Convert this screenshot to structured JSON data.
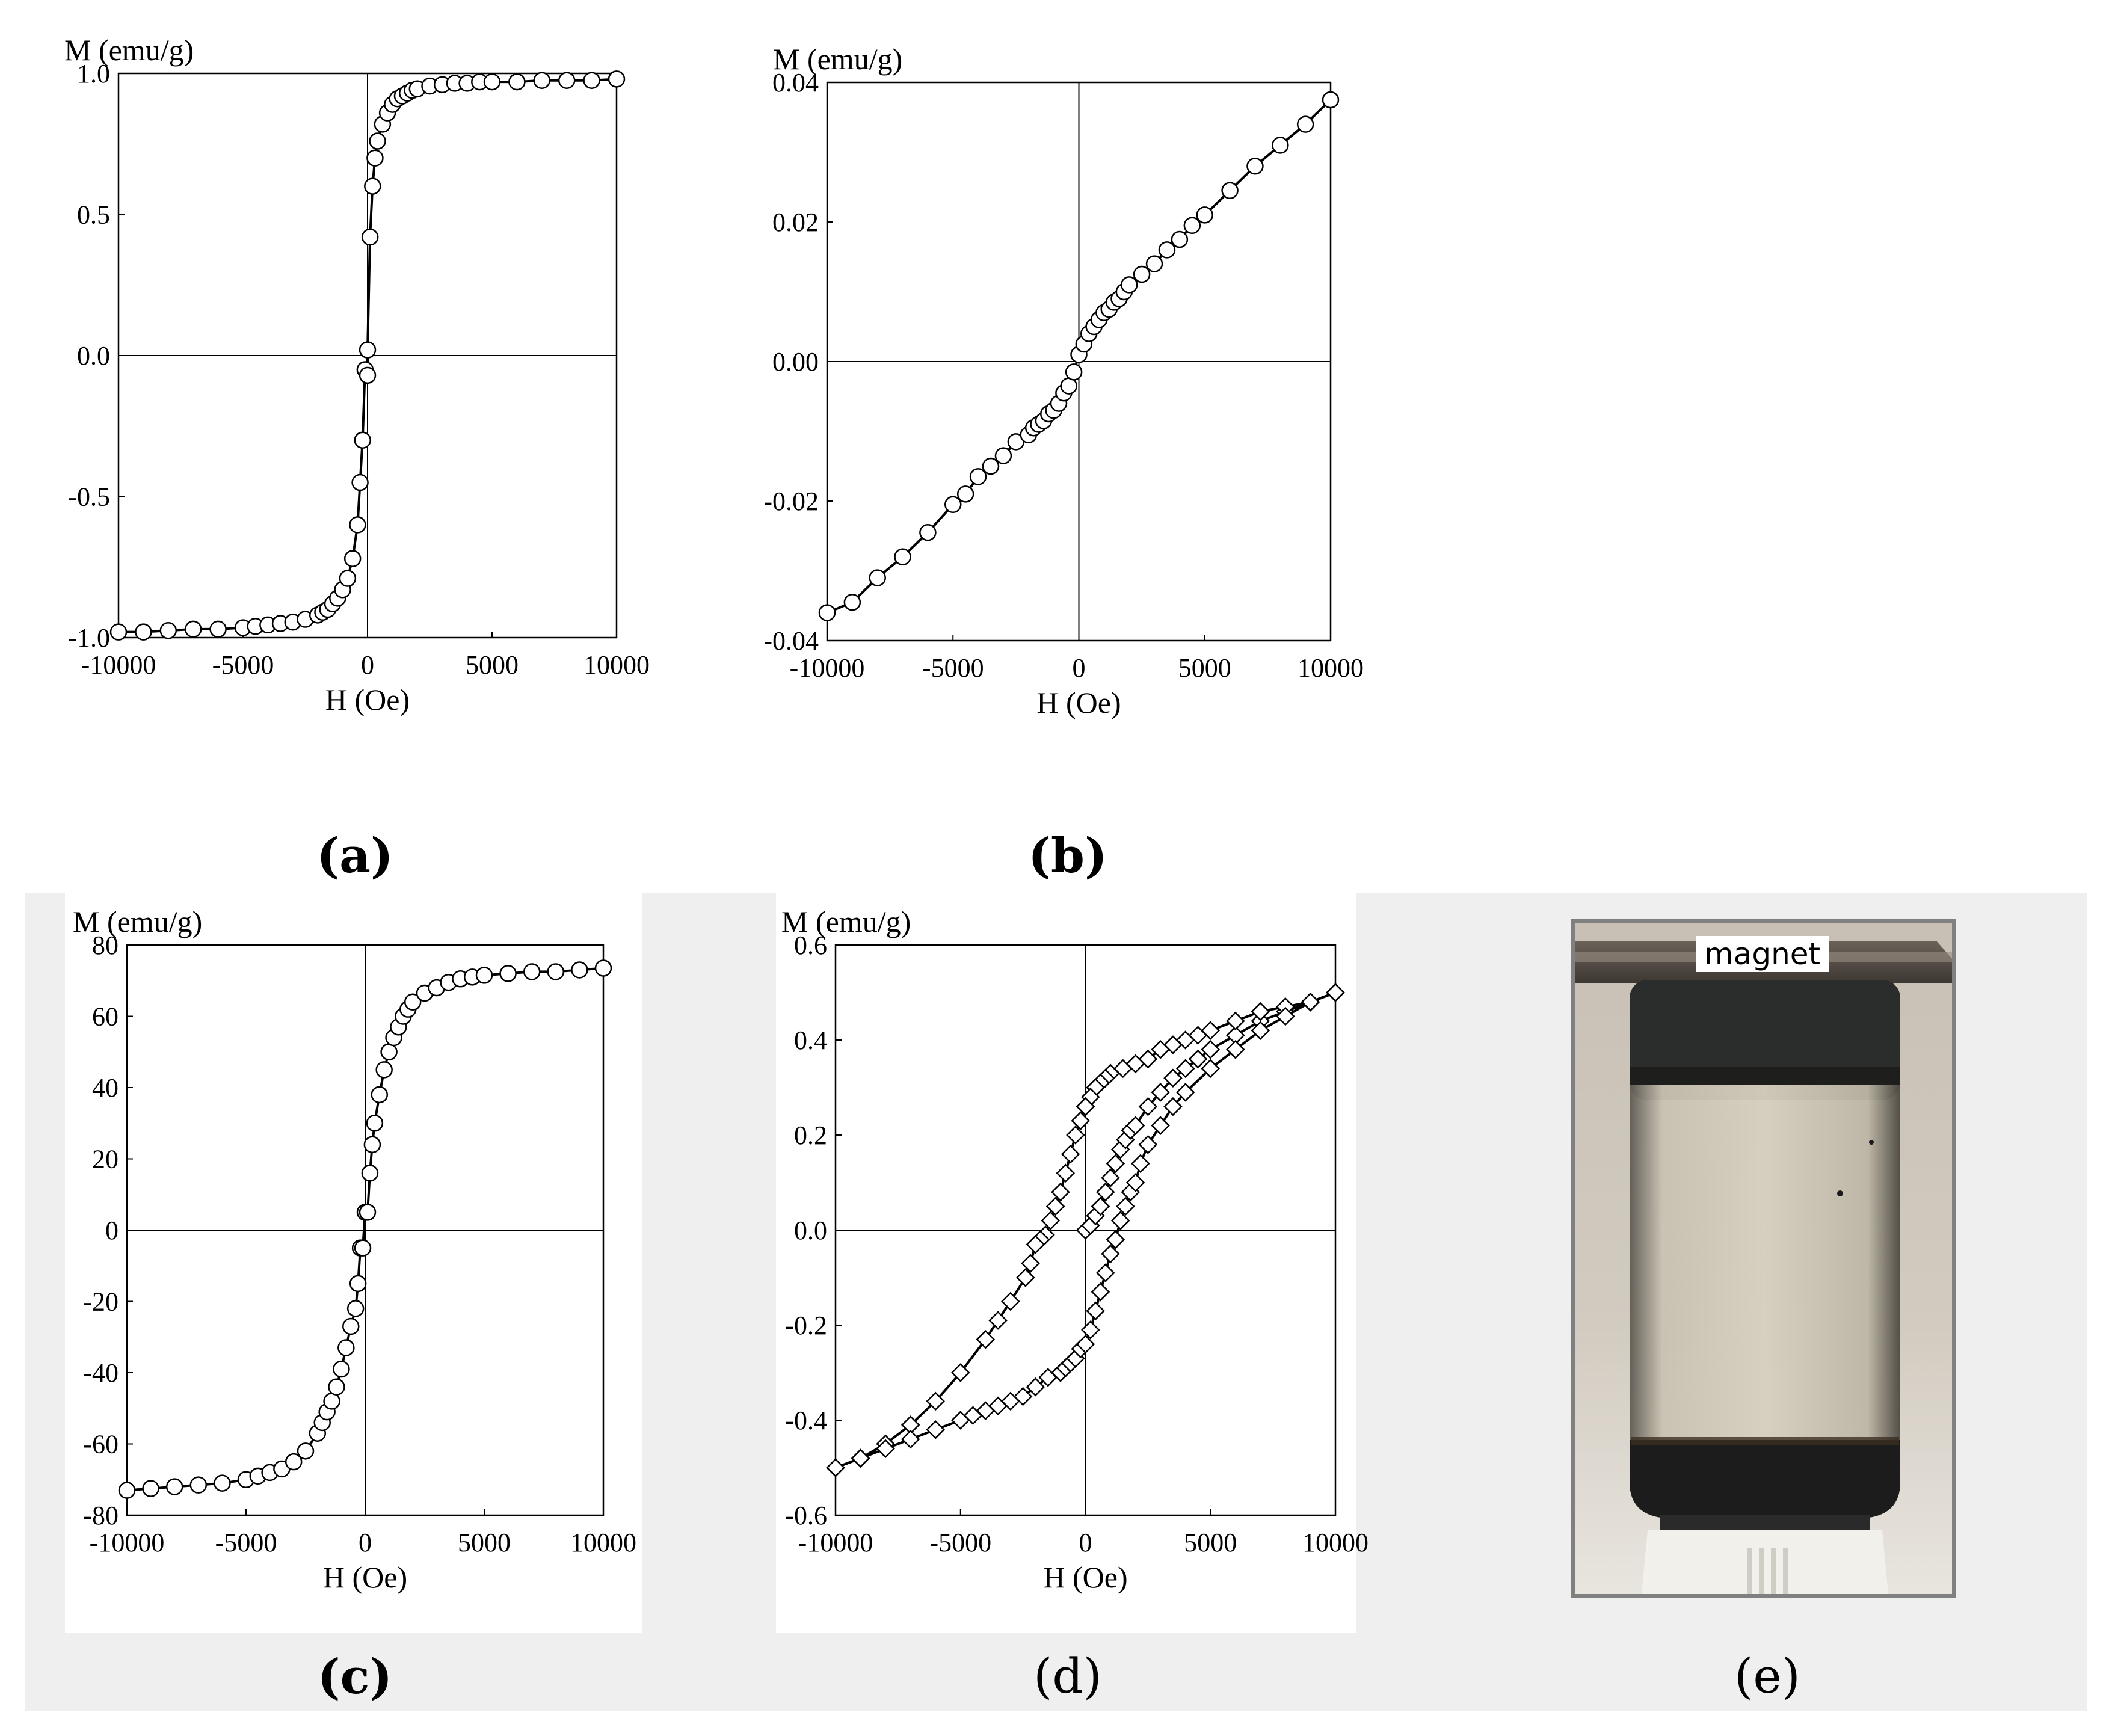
{
  "panels": {
    "a": "(a)",
    "b": "(b)",
    "c": "(c)",
    "d": "(d)",
    "e": "(e)"
  },
  "photo": {
    "label": "magnet"
  },
  "chart_data": [
    {
      "id": "a",
      "type": "scatter",
      "xlabel": "H (Oe)",
      "ylabel": "M (emu/g)",
      "xlim": [
        -10000,
        10000
      ],
      "ylim": [
        -1.0,
        1.0
      ],
      "xticks": [
        -10000,
        -5000,
        0,
        5000,
        10000
      ],
      "yticks": [
        -1.0,
        -0.5,
        0.0,
        0.5,
        1.0
      ],
      "ytick_labels": [
        "-1.0",
        "-0.5",
        "0.0",
        "0.5",
        "1.0"
      ],
      "marker": "circle",
      "series": [
        {
          "x": [
            -10000,
            -9000,
            -8000,
            -7000,
            -6000,
            -5000,
            -4500,
            -4000,
            -3500,
            -3000,
            -2500,
            -2000,
            -1800,
            -1600,
            -1400,
            -1200,
            -1000,
            -800,
            -600,
            -400,
            -300,
            -200,
            -100,
            0,
            0,
            100,
            200,
            300,
            400,
            600,
            800,
            1000,
            1200,
            1400,
            1600,
            1800,
            2000,
            2500,
            3000,
            3500,
            4000,
            4500,
            5000,
            6000,
            7000,
            8000,
            9000,
            10000
          ],
          "y": [
            -0.98,
            -0.98,
            -0.975,
            -0.97,
            -0.97,
            -0.965,
            -0.96,
            -0.955,
            -0.95,
            -0.945,
            -0.935,
            -0.92,
            -0.91,
            -0.9,
            -0.88,
            -0.86,
            -0.83,
            -0.79,
            -0.72,
            -0.6,
            -0.45,
            -0.3,
            -0.05,
            -0.07,
            0.02,
            0.42,
            0.6,
            0.7,
            0.76,
            0.82,
            0.86,
            0.89,
            0.91,
            0.92,
            0.93,
            0.94,
            0.945,
            0.955,
            0.96,
            0.965,
            0.965,
            0.97,
            0.97,
            0.97,
            0.975,
            0.975,
            0.975,
            0.98
          ]
        }
      ]
    },
    {
      "id": "b",
      "type": "scatter",
      "xlabel": "H (Oe)",
      "ylabel": "M (emu/g)",
      "xlim": [
        -10000,
        10000
      ],
      "ylim": [
        -0.04,
        0.04
      ],
      "xticks": [
        -10000,
        -5000,
        0,
        5000,
        10000
      ],
      "yticks": [
        -0.04,
        -0.02,
        0.0,
        0.02,
        0.04
      ],
      "ytick_labels": [
        "-0.04",
        "-0.02",
        "0.00",
        "0.02",
        "0.04"
      ],
      "marker": "circle",
      "series": [
        {
          "x": [
            -10000,
            -9000,
            -8000,
            -7000,
            -6000,
            -5000,
            -4500,
            -4000,
            -3500,
            -3000,
            -2500,
            -2000,
            -1800,
            -1600,
            -1400,
            -1200,
            -1000,
            -800,
            -600,
            -400,
            -200,
            0,
            200,
            400,
            600,
            800,
            1000,
            1200,
            1400,
            1600,
            1800,
            2000,
            2500,
            3000,
            3500,
            4000,
            4500,
            5000,
            6000,
            7000,
            8000,
            9000,
            10000
          ],
          "y": [
            -0.036,
            -0.0345,
            -0.031,
            -0.028,
            -0.0245,
            -0.0205,
            -0.019,
            -0.0165,
            -0.015,
            -0.0135,
            -0.0115,
            -0.0105,
            -0.0095,
            -0.009,
            -0.0085,
            -0.0075,
            -0.007,
            -0.006,
            -0.0045,
            -0.0035,
            -0.0015,
            0.001,
            0.0025,
            0.004,
            0.005,
            0.006,
            0.007,
            0.0075,
            0.0085,
            0.009,
            0.01,
            0.011,
            0.0125,
            0.014,
            0.016,
            0.0175,
            0.0195,
            0.021,
            0.0245,
            0.028,
            0.031,
            0.034,
            0.0375
          ]
        }
      ]
    },
    {
      "id": "c",
      "type": "scatter",
      "xlabel": "H (Oe)",
      "ylabel": "M (emu/g)",
      "xlim": [
        -10000,
        10000
      ],
      "ylim": [
        -80,
        80
      ],
      "xticks": [
        -10000,
        -5000,
        0,
        5000,
        10000
      ],
      "yticks": [
        -80,
        -60,
        -40,
        -20,
        0,
        20,
        40,
        60,
        80
      ],
      "ytick_labels": [
        "-80",
        "-60",
        "-40",
        "-20",
        "0",
        "20",
        "40",
        "60",
        "80"
      ],
      "marker": "circle",
      "series": [
        {
          "x": [
            -10000,
            -9000,
            -8000,
            -7000,
            -6000,
            -5000,
            -4500,
            -4000,
            -3500,
            -3000,
            -2500,
            -2000,
            -1800,
            -1600,
            -1400,
            -1200,
            -1000,
            -800,
            -600,
            -400,
            -300,
            -200,
            -100,
            0,
            100,
            200,
            300,
            400,
            600,
            800,
            1000,
            1200,
            1400,
            1600,
            1800,
            2000,
            2500,
            3000,
            3500,
            4000,
            4500,
            5000,
            6000,
            7000,
            8000,
            9000,
            10000
          ],
          "y": [
            -73,
            -72.5,
            -72,
            -71.5,
            -71,
            -70,
            -69,
            -68,
            -67,
            -65,
            -62,
            -57,
            -54,
            -51,
            -48,
            -44,
            -39,
            -33,
            -27,
            -22,
            -15,
            -5,
            -5,
            5,
            5,
            16,
            24,
            30,
            38,
            45,
            50,
            54,
            57,
            60,
            62,
            64,
            66.5,
            68,
            69.5,
            70.5,
            71,
            71.5,
            72,
            72.5,
            72.5,
            73,
            73.5
          ]
        }
      ]
    },
    {
      "id": "d",
      "type": "scatter",
      "xlabel": "H (Oe)",
      "ylabel": "M (emu/g)",
      "xlim": [
        -10000,
        10000
      ],
      "ylim": [
        -0.6,
        0.6
      ],
      "xticks": [
        -10000,
        -5000,
        0,
        5000,
        10000
      ],
      "yticks": [
        -0.6,
        -0.4,
        -0.2,
        0.0,
        0.2,
        0.4,
        0.6
      ],
      "ytick_labels": [
        "-0.6",
        "-0.4",
        "-0.2",
        "0.0",
        "0.2",
        "0.4",
        "0.6"
      ],
      "marker": "diamond",
      "series": [
        {
          "x": [
            0,
            200,
            400,
            600,
            800,
            1000,
            1200,
            1400,
            1600,
            1800,
            2000,
            2500,
            3000,
            3500,
            4000,
            4500,
            5000,
            6000,
            7000,
            8000,
            9000,
            10000
          ],
          "y": [
            0.0,
            0.01,
            0.03,
            0.05,
            0.08,
            0.11,
            0.14,
            0.17,
            0.19,
            0.21,
            0.22,
            0.26,
            0.29,
            0.32,
            0.34,
            0.36,
            0.38,
            0.41,
            0.44,
            0.46,
            0.48,
            0.5
          ]
        },
        {
          "x": [
            10000,
            9000,
            8000,
            7000,
            6000,
            5000,
            4500,
            4000,
            3500,
            3000,
            2500,
            2000,
            1500,
            1000,
            800,
            600,
            400,
            200,
            0,
            -200,
            -400,
            -600,
            -800,
            -1000,
            -1200,
            -1400,
            -1600,
            -1800,
            -2000,
            -2200,
            -2400,
            -3000,
            -3500,
            -4000,
            -5000,
            -6000,
            -7000,
            -8000,
            -9000,
            -10000
          ],
          "y": [
            0.5,
            0.48,
            0.47,
            0.46,
            0.44,
            0.42,
            0.41,
            0.4,
            0.39,
            0.38,
            0.36,
            0.35,
            0.34,
            0.33,
            0.32,
            0.31,
            0.3,
            0.28,
            0.26,
            0.23,
            0.2,
            0.16,
            0.12,
            0.08,
            0.05,
            0.02,
            -0.01,
            -0.02,
            -0.03,
            -0.07,
            -0.1,
            -0.15,
            -0.19,
            -0.23,
            -0.3,
            -0.36,
            -0.41,
            -0.45,
            -0.48,
            -0.5
          ]
        },
        {
          "x": [
            -10000,
            -9000,
            -8000,
            -7000,
            -6000,
            -5000,
            -4500,
            -4000,
            -3500,
            -3000,
            -2500,
            -2000,
            -1500,
            -1000,
            -800,
            -600,
            -400,
            -200,
            0,
            200,
            400,
            600,
            800,
            1000,
            1200,
            1400,
            1600,
            1800,
            2000,
            2200,
            2500,
            3000,
            3500,
            4000,
            5000,
            6000,
            7000,
            8000,
            9000,
            10000
          ],
          "y": [
            -0.5,
            -0.48,
            -0.46,
            -0.44,
            -0.42,
            -0.4,
            -0.39,
            -0.38,
            -0.37,
            -0.36,
            -0.35,
            -0.33,
            -0.31,
            -0.3,
            -0.29,
            -0.28,
            -0.27,
            -0.25,
            -0.24,
            -0.21,
            -0.17,
            -0.13,
            -0.09,
            -0.05,
            -0.02,
            0.02,
            0.05,
            0.08,
            0.1,
            0.14,
            0.18,
            0.22,
            0.26,
            0.29,
            0.34,
            0.38,
            0.42,
            0.45,
            0.48,
            0.5
          ]
        }
      ]
    }
  ]
}
